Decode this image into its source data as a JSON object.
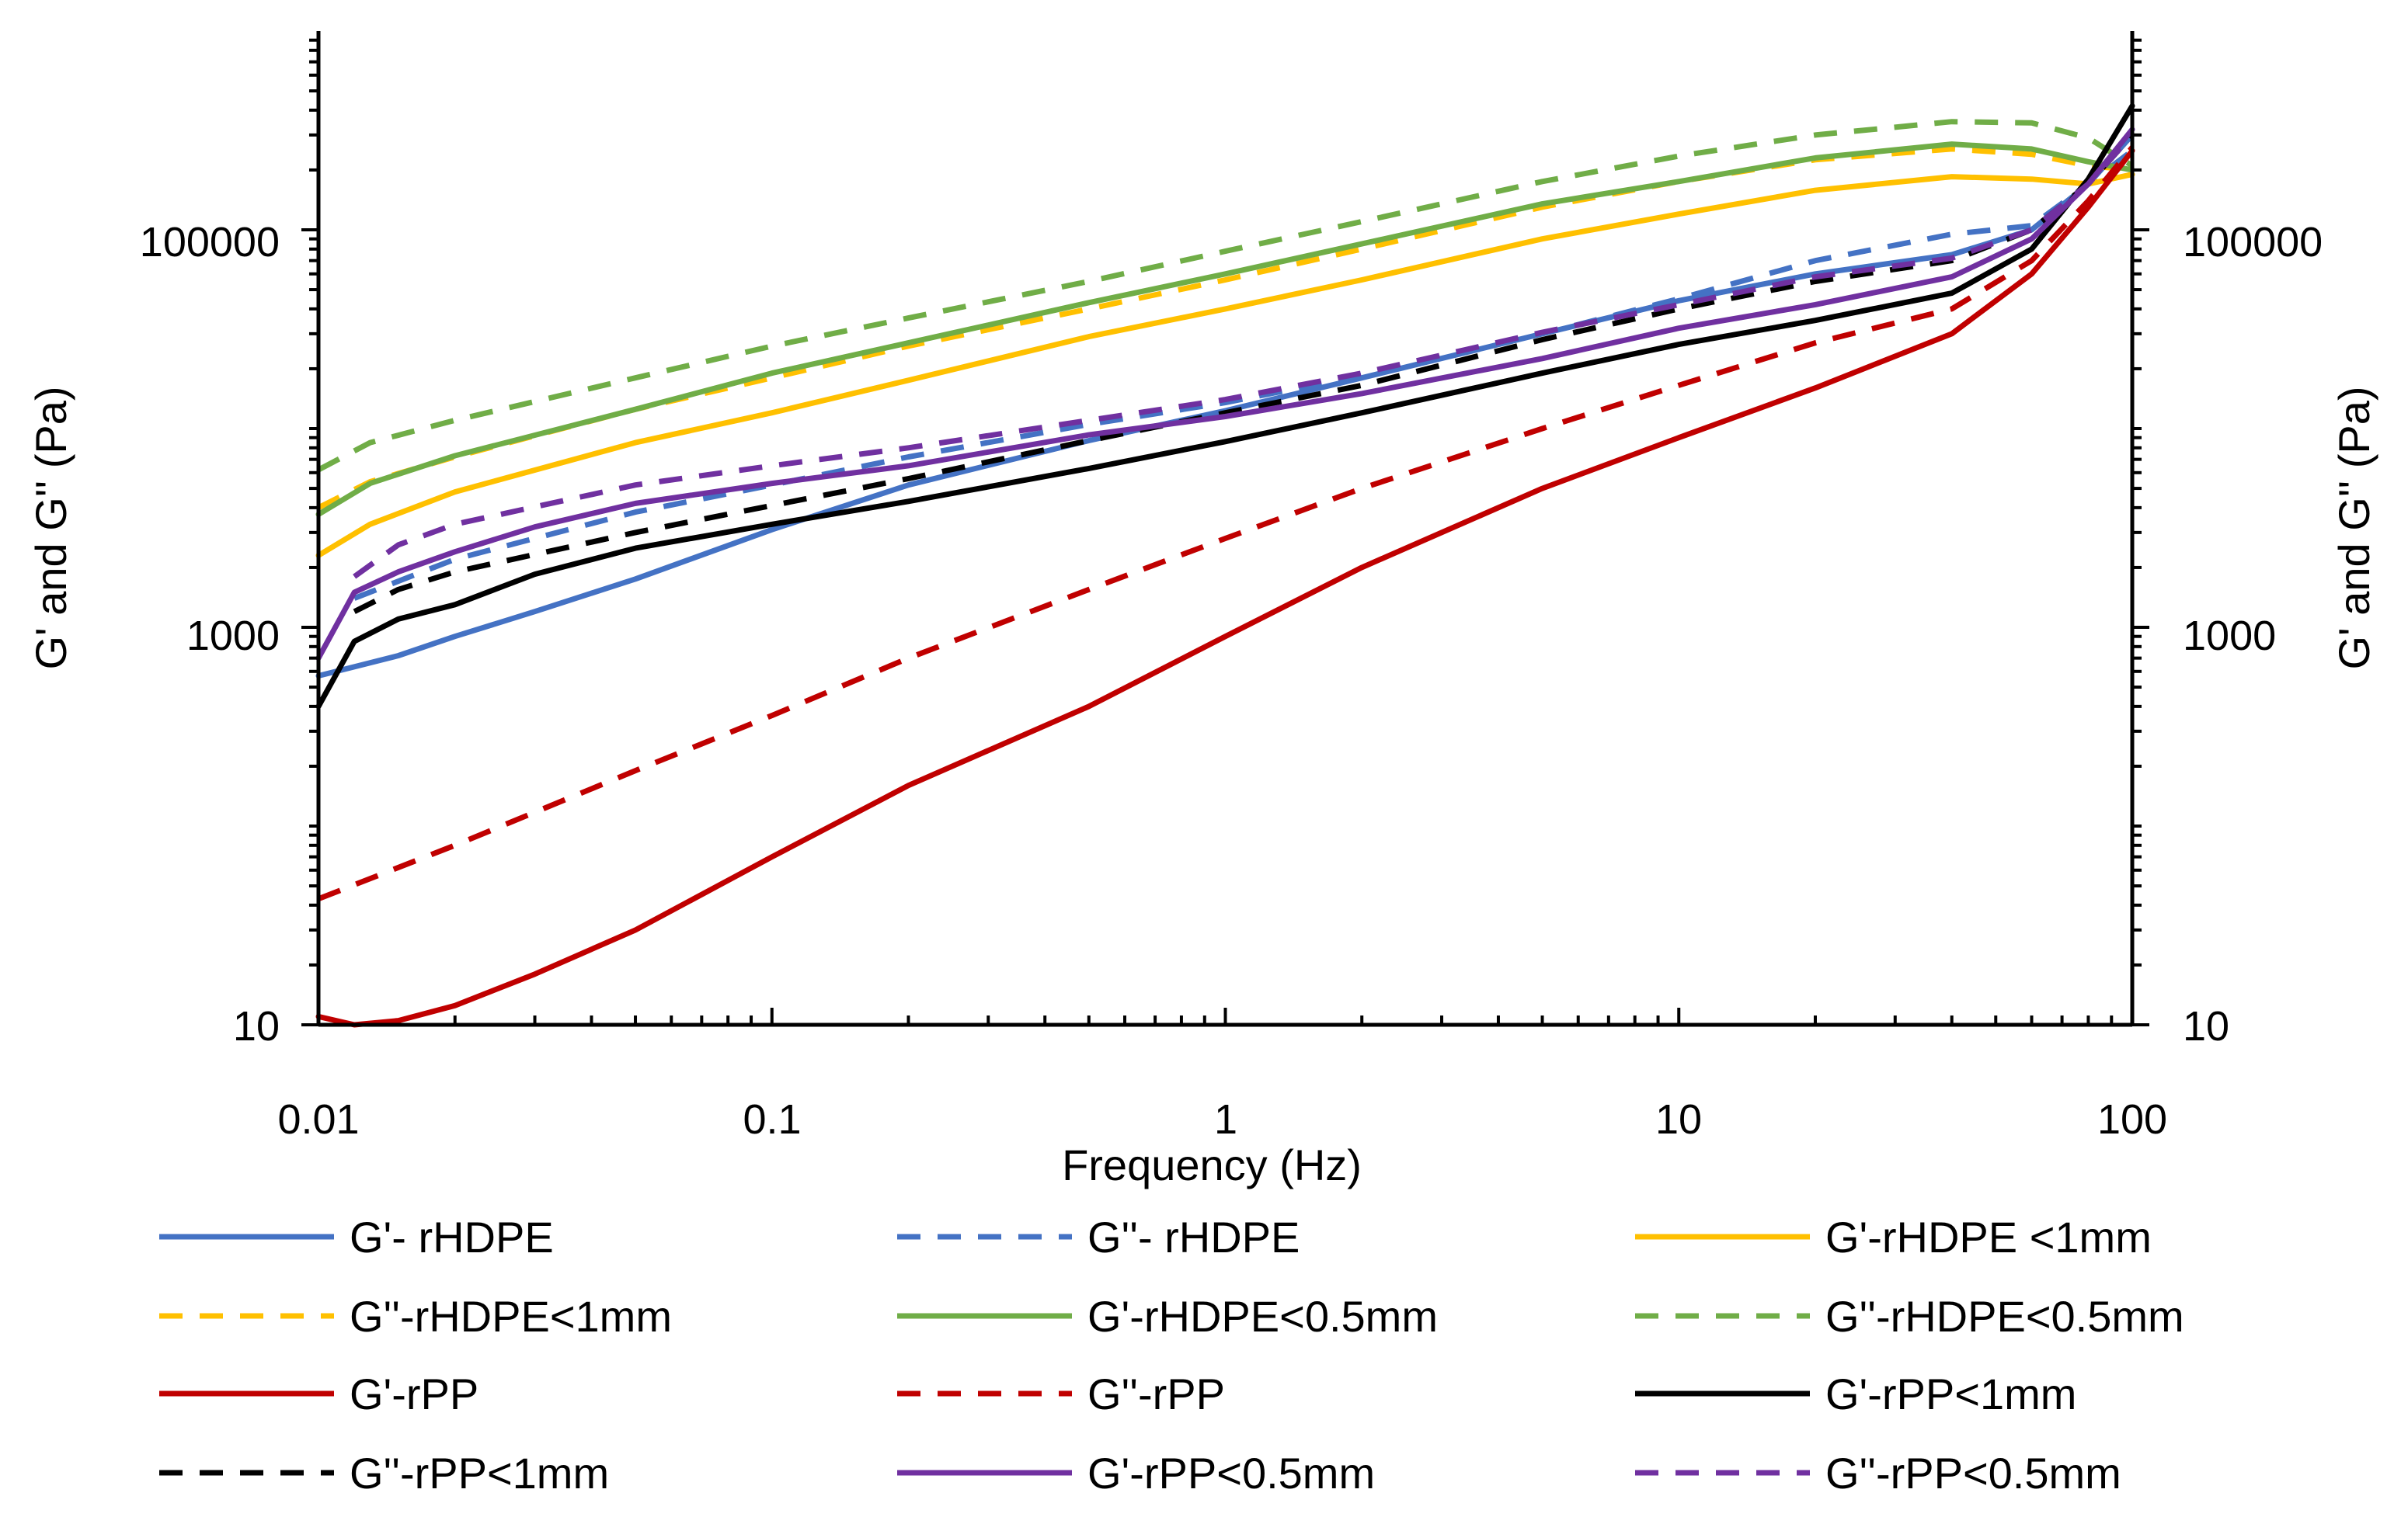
{
  "chart_data": {
    "type": "line",
    "title": "",
    "xlabel": "Frequency (Hz)",
    "ylabel": "G' and G'' (Pa)",
    "ylabel_right": "G' and G'' (Pa)",
    "xscale": "log",
    "yscale": "log",
    "xlim": [
      0.01,
      100
    ],
    "ylim": [
      10,
      1000000
    ],
    "x_ticks": [
      "0.01",
      "0.1",
      "1",
      "10",
      "100"
    ],
    "y_ticks": [
      "10",
      "1000",
      "100000"
    ],
    "y_ticks_right": [
      "10",
      "1000",
      "100000"
    ],
    "grid": false,
    "legend_position": "bottom",
    "series": [
      {
        "name": "G'- rHDPE",
        "color": "#4472C4",
        "dash": false,
        "x": [
          0.01,
          0.015,
          0.02,
          0.03,
          0.05,
          0.1,
          0.2,
          0.5,
          1,
          2,
          5,
          10,
          20,
          40,
          60,
          80,
          100
        ],
        "y": [
          570,
          720,
          900,
          1200,
          1750,
          3100,
          5200,
          8700,
          12300,
          18000,
          30000,
          44000,
          60000,
          75000,
          100000,
          170000,
          300000
        ]
      },
      {
        "name": "G''- rHDPE",
        "color": "#4472C4",
        "dash": true,
        "x": [
          0.012,
          0.02,
          0.05,
          0.1,
          0.2,
          0.5,
          1,
          2,
          5,
          10,
          20,
          40,
          60,
          80,
          100
        ],
        "y": [
          1400,
          2200,
          3800,
          5200,
          7200,
          10500,
          13500,
          18500,
          30000,
          45000,
          70000,
          95000,
          105000,
          170000,
          250000
        ]
      },
      {
        "name": "G'-rHDPE <1mm",
        "color": "#FFC000",
        "dash": false,
        "x": [
          0.01,
          0.013,
          0.02,
          0.05,
          0.1,
          0.2,
          0.5,
          1,
          2,
          5,
          10,
          20,
          40,
          60,
          80,
          100
        ],
        "y": [
          2300,
          3300,
          4800,
          8500,
          12000,
          17500,
          29000,
          40000,
          56000,
          90000,
          120000,
          158000,
          185000,
          180000,
          170000,
          190000
        ]
      },
      {
        "name": "G''-rHDPE<1mm",
        "color": "#FFC000",
        "dash": true,
        "x": [
          0.01,
          0.013,
          0.02,
          0.05,
          0.1,
          0.2,
          0.5,
          1,
          2,
          5,
          10,
          20,
          40,
          60,
          80,
          100
        ],
        "y": [
          4000,
          5400,
          7200,
          12500,
          18000,
          26000,
          40000,
          56000,
          80000,
          130000,
          175000,
          225000,
          255000,
          240000,
          210000,
          200000
        ]
      },
      {
        "name": "G'-rHDPE<0.5mm",
        "color": "#70AD47",
        "dash": false,
        "x": [
          0.01,
          0.013,
          0.02,
          0.05,
          0.1,
          0.2,
          0.5,
          1,
          2,
          5,
          10,
          20,
          40,
          60,
          80,
          100
        ],
        "y": [
          3700,
          5300,
          7300,
          12500,
          19000,
          27000,
          43000,
          60000,
          85000,
          135000,
          175000,
          230000,
          270000,
          255000,
          220000,
          200000
        ]
      },
      {
        "name": "G''-rHDPE<0.5mm",
        "color": "#70AD47",
        "dash": true,
        "x": [
          0.01,
          0.013,
          0.02,
          0.05,
          0.1,
          0.2,
          0.5,
          1,
          2,
          5,
          10,
          20,
          40,
          60,
          80,
          100
        ],
        "y": [
          6200,
          8500,
          11000,
          18000,
          26000,
          36000,
          55000,
          78000,
          110000,
          175000,
          235000,
          300000,
          350000,
          345000,
          290000,
          210000
        ]
      },
      {
        "name": "G'-rPP",
        "color": "#C00000",
        "dash": false,
        "x": [
          0.01,
          0.012,
          0.015,
          0.02,
          0.03,
          0.05,
          0.1,
          0.2,
          0.5,
          1,
          2,
          5,
          10,
          20,
          40,
          60,
          80,
          100
        ],
        "y": [
          11,
          10,
          10.5,
          12.5,
          18,
          30,
          70,
          160,
          400,
          900,
          2000,
          5000,
          9000,
          16000,
          30000,
          60000,
          130000,
          250000
        ]
      },
      {
        "name": "G''-rPP",
        "color": "#C00000",
        "dash": true,
        "x": [
          0.01,
          0.02,
          0.05,
          0.1,
          0.2,
          0.5,
          1,
          2,
          5,
          10,
          20,
          40,
          60,
          80,
          100
        ],
        "y": [
          43,
          80,
          190,
          360,
          700,
          1550,
          2800,
          5000,
          10000,
          16500,
          27000,
          40000,
          70000,
          140000,
          260000
        ]
      },
      {
        "name": "G'-rPP<1mm",
        "color": "#000000",
        "dash": false,
        "x": [
          0.01,
          0.012,
          0.015,
          0.02,
          0.03,
          0.05,
          0.1,
          0.2,
          0.5,
          1,
          2,
          5,
          10,
          20,
          40,
          60,
          80,
          100
        ],
        "y": [
          400,
          850,
          1100,
          1300,
          1850,
          2500,
          3300,
          4300,
          6300,
          8600,
          12000,
          19000,
          26500,
          35000,
          48000,
          80000,
          180000,
          420000
        ]
      },
      {
        "name": "G''-rPP<1mm",
        "color": "#000000",
        "dash": true,
        "x": [
          0.012,
          0.015,
          0.02,
          0.05,
          0.1,
          0.2,
          0.5,
          1,
          2,
          5,
          10,
          20,
          40,
          60,
          80,
          100
        ],
        "y": [
          1200,
          1550,
          1900,
          3000,
          4100,
          5600,
          8700,
          12000,
          16500,
          28000,
          40000,
          55000,
          70000,
          100000,
          170000,
          300000
        ]
      },
      {
        "name": "G'-rPP<0.5mm",
        "color": "#7030A0",
        "dash": false,
        "x": [
          0.01,
          0.012,
          0.015,
          0.02,
          0.03,
          0.05,
          0.1,
          0.2,
          0.5,
          1,
          2,
          5,
          10,
          20,
          40,
          60,
          80,
          100
        ],
        "y": [
          700,
          1500,
          1900,
          2400,
          3200,
          4200,
          5300,
          6500,
          9300,
          11500,
          15000,
          22500,
          32000,
          42000,
          58000,
          90000,
          170000,
          320000
        ]
      },
      {
        "name": "G''-rPP<0.5mm",
        "color": "#7030A0",
        "dash": true,
        "x": [
          0.012,
          0.015,
          0.02,
          0.05,
          0.1,
          0.2,
          0.5,
          1,
          2,
          5,
          10,
          20,
          40,
          60,
          80,
          100
        ],
        "y": [
          1800,
          2600,
          3300,
          5200,
          6500,
          8000,
          11000,
          14000,
          19000,
          30500,
          42000,
          58000,
          72000,
          100000,
          170000,
          300000
        ]
      }
    ]
  }
}
